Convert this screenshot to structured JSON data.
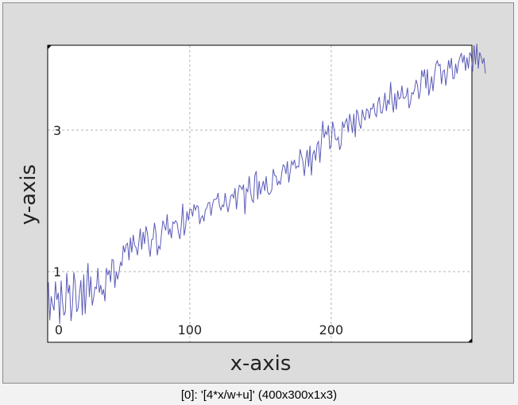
{
  "caption": "[0]: '[4*x/w+u]' (400x300x1x3)",
  "chart_data": {
    "type": "line",
    "title": "",
    "xlabel": "x-axis",
    "ylabel": "y-axis",
    "xlim": [
      -0.5,
      299.5
    ],
    "ylim": [
      0,
      4.2
    ],
    "x_ticks": [
      0,
      100,
      200
    ],
    "x_tick_labels": [
      "0",
      "100",
      "200"
    ],
    "y_ticks": [
      1,
      3
    ],
    "y_tick_labels": [
      "1",
      "3"
    ],
    "grid": true,
    "series": [
      {
        "name": "",
        "color": "#5b5bb8",
        "x_start": 0,
        "x_step": 1,
        "values": [
          0.85,
          0.31,
          0.65,
          0.53,
          0.45,
          0.86,
          0.6,
          0.7,
          0.26,
          0.87,
          0.57,
          0.38,
          0.43,
          0.98,
          0.69,
          0.81,
          0.3,
          0.51,
          0.99,
          0.83,
          0.43,
          0.48,
          0.69,
          0.88,
          0.38,
          0.96,
          0.4,
          0.78,
          1.12,
          0.64,
          0.93,
          0.52,
          0.63,
          0.78,
          0.76,
          1.05,
          0.7,
          0.81,
          0.67,
          0.75,
          0.58,
          1.05,
          0.95,
          1.02,
          0.85,
          1.17,
          1.16,
          0.77,
          1.0,
          0.89,
          1.0,
          1.13,
          1.08,
          1.37,
          1.27,
          1.38,
          1.4,
          1.16,
          1.48,
          1.27,
          1.52,
          1.37,
          1.34,
          1.23,
          1.42,
          1.61,
          1.31,
          1.56,
          1.39,
          1.64,
          1.55,
          1.35,
          1.21,
          1.45,
          1.46,
          1.69,
          1.56,
          1.23,
          1.36,
          1.32,
          1.54,
          1.72,
          1.65,
          1.58,
          1.81,
          1.52,
          1.61,
          1.47,
          1.7,
          1.68,
          1.72,
          1.69,
          1.55,
          1.46,
          1.66,
          1.96,
          1.51,
          1.63,
          1.85,
          1.72,
          1.88,
          1.88,
          1.78,
          1.95,
          1.87,
          1.93,
          1.92,
          1.67,
          1.76,
          1.79,
          1.71,
          1.87,
          1.9,
          1.97,
          1.98,
          1.79,
          1.94,
          2.02,
          2.02,
          2.03,
          2.11,
          1.93,
          1.87,
          1.94,
          1.92,
          2.11,
          1.96,
          1.84,
          1.95,
          2.07,
          2.09,
          2.04,
          2.18,
          1.88,
          2.09,
          2.22,
          2.2,
          2.16,
          2.23,
          1.81,
          2.17,
          2.13,
          2.35,
          2.12,
          2.01,
          1.98,
          2.36,
          2.42,
          2.02,
          2.28,
          2.09,
          2.19,
          2.28,
          2.14,
          2.35,
          2.13,
          2.09,
          2.11,
          2.16,
          2.45,
          2.36,
          2.35,
          2.22,
          2.28,
          2.23,
          2.39,
          2.51,
          2.49,
          2.38,
          2.56,
          2.26,
          2.41,
          2.56,
          2.51,
          2.58,
          2.46,
          2.49,
          2.48,
          2.73,
          2.64,
          2.55,
          2.35,
          2.58,
          2.72,
          2.48,
          2.78,
          2.36,
          2.66,
          2.71,
          2.57,
          2.8,
          2.84,
          2.54,
          2.83,
          3.13,
          2.89,
          2.98,
          2.94,
          3.07,
          2.73,
          2.79,
          3.12,
          3.02,
          2.87,
          2.86,
          2.9,
          2.72,
          2.79,
          3.12,
          3.03,
          3.12,
          3.16,
          2.97,
          3.23,
          3.12,
          2.96,
          3.23,
          2.9,
          3.29,
          3.23,
          3.08,
          3.02,
          3.29,
          3.19,
          3.14,
          3.3,
          3.28,
          3.16,
          3.31,
          3.3,
          3.38,
          3.23,
          3.19,
          3.39,
          3.47,
          3.25,
          3.24,
          3.36,
          3.53,
          3.27,
          3.43,
          3.36,
          3.68,
          3.41,
          3.25,
          3.52,
          3.29,
          3.56,
          3.44,
          3.46,
          3.63,
          3.45,
          3.45,
          3.48,
          3.6,
          3.31,
          3.38,
          3.53,
          3.51,
          3.58,
          3.71,
          3.64,
          3.44,
          3.55,
          3.85,
          3.75,
          3.86,
          3.59,
          3.86,
          3.49,
          3.61,
          3.76,
          3.55,
          3.78,
          3.93,
          3.98,
          3.91,
          3.93,
          3.65,
          3.83,
          3.85,
          3.63,
          3.79,
          3.99,
          3.87,
          4.02,
          3.73,
          3.73,
          3.94,
          3.8,
          3.95,
          4.03,
          4.09,
          3.95,
          4.06,
          3.84,
          4.03,
          3.87,
          4.1,
          4.05,
          3.83,
          4.2,
          3.93,
          4.22,
          3.87,
          4.1,
          4.04,
          3.94,
          4.02,
          3.8
        ]
      }
    ]
  }
}
